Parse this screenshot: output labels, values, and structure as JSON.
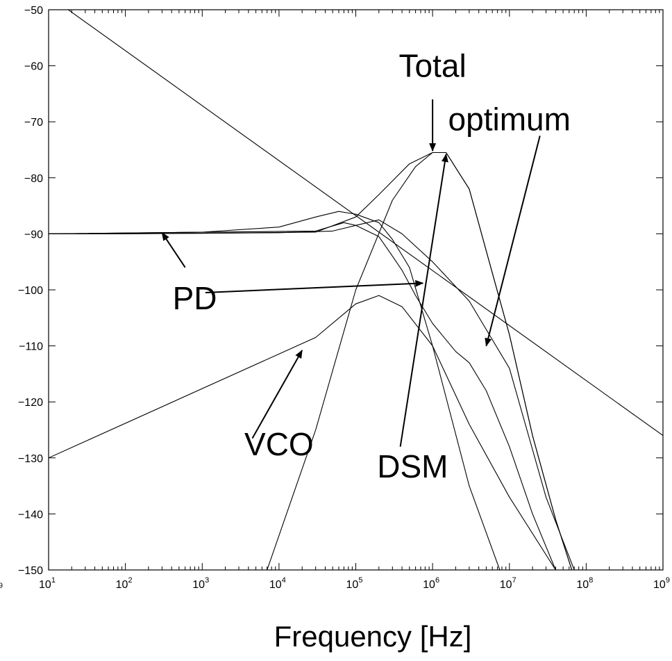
{
  "chart_data": {
    "type": "line",
    "xscale": "log",
    "xlim": [
      10,
      1000000000
    ],
    "ylim": [
      -150,
      -50
    ],
    "xlabel": "Frequency [Hz]",
    "ylabel": "",
    "title": "",
    "grid": false,
    "legend": "none",
    "x_ticks": [
      {
        "value": 10,
        "base": "10",
        "exp": "1"
      },
      {
        "value": 100,
        "base": "10",
        "exp": "2"
      },
      {
        "value": 1000,
        "base": "10",
        "exp": "3"
      },
      {
        "value": 10000,
        "base": "10",
        "exp": "4"
      },
      {
        "value": 100000,
        "base": "10",
        "exp": "5"
      },
      {
        "value": 1000000,
        "base": "10",
        "exp": "6"
      },
      {
        "value": 10000000,
        "base": "10",
        "exp": "7"
      },
      {
        "value": 100000000,
        "base": "10",
        "exp": "8"
      },
      {
        "value": 1000000000,
        "base": "10",
        "exp": "9"
      }
    ],
    "y_ticks": [
      {
        "value": -50,
        "label": "−50"
      },
      {
        "value": -60,
        "label": "−60"
      },
      {
        "value": -70,
        "label": "−70"
      },
      {
        "value": -80,
        "label": "−80"
      },
      {
        "value": -90,
        "label": "−90"
      },
      {
        "value": -100,
        "label": "−100"
      },
      {
        "value": -110,
        "label": "−110"
      },
      {
        "value": -120,
        "label": "−120"
      },
      {
        "value": -130,
        "label": "−130"
      },
      {
        "value": -140,
        "label": "−140"
      },
      {
        "value": -150,
        "label": "−150"
      }
    ],
    "edge_fragment": {
      "base": "0",
      "exp": "9"
    },
    "series": [
      {
        "points": [
          [
            10,
            -47.5
          ],
          [
            1000000000,
            -126
          ]
        ]
      },
      {
        "points": [
          [
            10,
            -90
          ],
          [
            100,
            -90
          ],
          [
            1000,
            -89.9
          ],
          [
            10000,
            -89.8
          ],
          [
            50000,
            -89.5
          ],
          [
            100000,
            -88.5
          ],
          [
            200000,
            -87.5
          ],
          [
            400000,
            -90
          ],
          [
            1000000,
            -95
          ],
          [
            3000000,
            -102
          ],
          [
            10000000,
            -114
          ],
          [
            30000000,
            -137
          ],
          [
            70000000,
            -150
          ]
        ]
      },
      {
        "points": [
          [
            10,
            -90
          ],
          [
            1000,
            -89.7
          ],
          [
            10000,
            -88.8
          ],
          [
            30000,
            -87
          ],
          [
            60000,
            -86
          ],
          [
            100000,
            -86.5
          ],
          [
            200000,
            -88
          ],
          [
            300000,
            -91
          ],
          [
            500000,
            -96
          ],
          [
            1000000,
            -110
          ],
          [
            3000000,
            -135
          ],
          [
            7500000,
            -150
          ]
        ]
      },
      {
        "points": [
          [
            10,
            -130
          ],
          [
            30000,
            -108.5
          ],
          [
            100000,
            -102.5
          ],
          [
            200000,
            -101
          ],
          [
            400000,
            -103
          ],
          [
            1000000,
            -110
          ],
          [
            3000000,
            -124
          ],
          [
            10000000,
            -137
          ],
          [
            40000000,
            -150
          ]
        ]
      },
      {
        "points": [
          [
            7000,
            -150
          ],
          [
            30000,
            -125
          ],
          [
            100000,
            -100
          ],
          [
            300000,
            -84
          ],
          [
            600000,
            -78
          ],
          [
            1000000,
            -75.5
          ],
          [
            1500000,
            -75.5
          ],
          [
            3000000,
            -82
          ],
          [
            6000000,
            -97
          ],
          [
            10000000,
            -108
          ],
          [
            20000000,
            -126
          ],
          [
            40000000,
            -141
          ],
          [
            65000000,
            -150
          ]
        ]
      },
      {
        "points": [
          [
            10,
            -90
          ],
          [
            1000,
            -89.9
          ],
          [
            30000,
            -89.7
          ],
          [
            100000,
            -87
          ],
          [
            200000,
            -83
          ],
          [
            500000,
            -77.5
          ],
          [
            1000000,
            -75.5
          ],
          [
            1500000,
            -75.5
          ],
          [
            3000000,
            -82
          ],
          [
            6000000,
            -97
          ],
          [
            10000000,
            -108
          ],
          [
            20000000,
            -126
          ],
          [
            40000000,
            -141
          ],
          [
            65000000,
            -150
          ]
        ]
      },
      {
        "points": [
          [
            40000000,
            -150
          ],
          [
            20000000,
            -140
          ],
          [
            10000000,
            -128
          ],
          [
            5000000,
            -118
          ],
          [
            3000000,
            -113
          ],
          [
            2000000,
            -111
          ],
          [
            1000000,
            -106
          ],
          [
            600000,
            -101
          ],
          [
            400000,
            -96.5
          ],
          [
            300000,
            -94
          ],
          [
            200000,
            -90.5
          ],
          [
            100000,
            -88.5
          ],
          [
            70000,
            -88
          ],
          [
            30000,
            -89.5
          ],
          [
            10,
            -90
          ]
        ]
      }
    ],
    "annotations": [
      {
        "text": "Total",
        "x": 1000000,
        "y": -62
      },
      {
        "text": "optimum",
        "x": 10000000,
        "y": -71.5
      },
      {
        "text": "PD",
        "x": 800,
        "y": -103.5
      },
      {
        "text": "VCO",
        "x": 10000,
        "y": -129.5
      },
      {
        "text": "DSM",
        "x": 550000,
        "y": -133.5
      }
    ],
    "arrows": [
      {
        "from": [
          1000000,
          -66
        ],
        "to": [
          1000000,
          -75.2
        ]
      },
      {
        "from": [
          25000000,
          -72.5
        ],
        "to": [
          5000000,
          -110
        ]
      },
      {
        "from": [
          600,
          -96
        ],
        "to": [
          300,
          -89.8
        ]
      },
      {
        "from": [
          1100,
          -100.5
        ],
        "to": [
          750000,
          -98.8
        ]
      },
      {
        "from": [
          4500,
          -126.5
        ],
        "to": [
          20000,
          -110.8
        ]
      },
      {
        "from": [
          380000,
          -128
        ],
        "to": [
          1500000,
          -75.8
        ]
      }
    ]
  }
}
